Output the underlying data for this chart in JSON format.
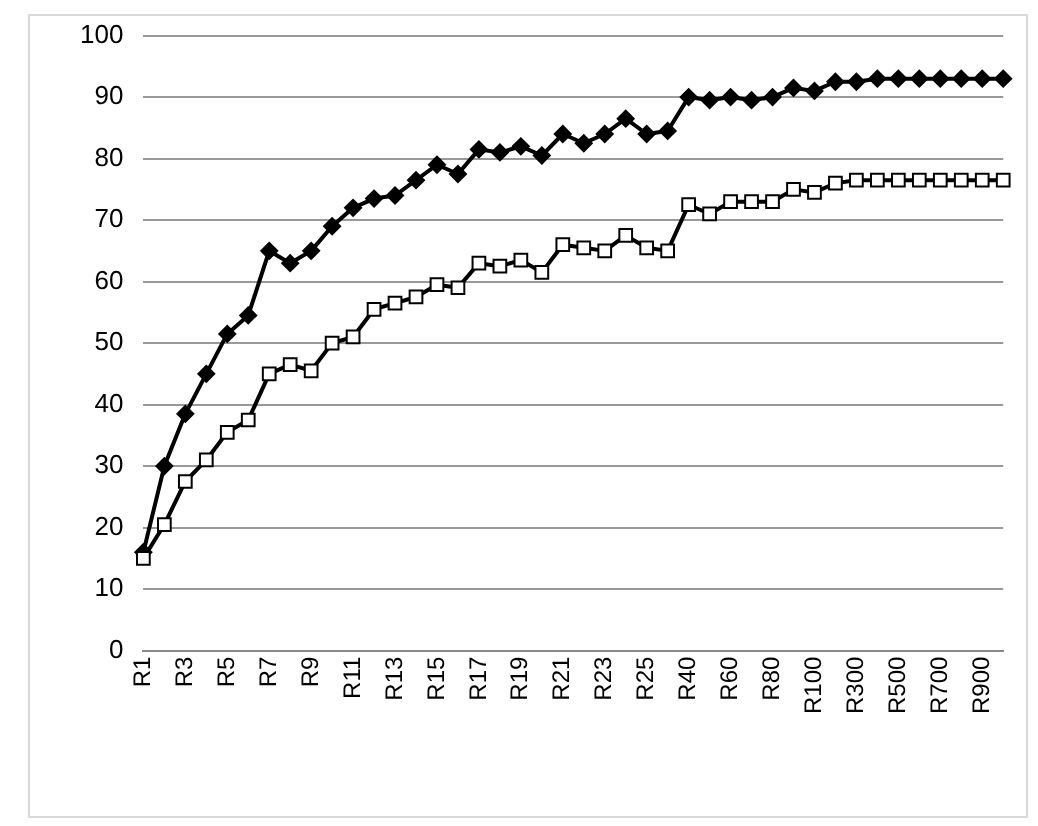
{
  "chart_data": {
    "type": "line",
    "categories": [
      "R1",
      null,
      "R3",
      null,
      "R5",
      null,
      "R7",
      null,
      "R9",
      null,
      "R11",
      null,
      "R13",
      null,
      "R15",
      null,
      "R17",
      null,
      "R19",
      null,
      "R21",
      null,
      "R23",
      null,
      "R25",
      null,
      "R40",
      null,
      "R60",
      null,
      "R80",
      null,
      "R100",
      null,
      "R300",
      null,
      "R500",
      null,
      "R700",
      null,
      "R900",
      null
    ],
    "series": [
      {
        "color": "#000000",
        "marker": "diamond",
        "values": [
          16,
          30,
          38.5,
          45,
          51.5,
          54.5,
          65,
          63,
          65,
          69,
          72,
          73.5,
          74,
          76.5,
          79,
          77.5,
          81.5,
          81,
          82,
          80.5,
          84,
          82.5,
          84,
          86.5,
          84,
          84.5,
          90,
          89.5,
          90,
          89.5,
          90,
          91.5,
          91,
          92.5,
          92.5,
          93,
          93,
          93,
          93,
          93,
          93,
          93
        ]
      },
      {
        "color": "#000000",
        "marker": "square",
        "values": [
          15,
          20.5,
          27.5,
          31,
          35.5,
          37.5,
          45,
          46.5,
          45.5,
          50,
          51,
          55.5,
          56.5,
          57.5,
          59.5,
          59,
          63,
          62.5,
          63.5,
          61.5,
          66,
          65.5,
          65,
          67.5,
          65.5,
          65,
          72.5,
          71,
          73,
          73,
          73,
          75,
          74.5,
          76,
          76.5,
          76.5,
          76.5,
          76.5,
          76.5,
          76.5,
          76.5,
          76.5
        ]
      }
    ],
    "ylim": [
      0,
      100
    ],
    "yticks": [
      0,
      10,
      20,
      30,
      40,
      50,
      60,
      70,
      80,
      90,
      100
    ],
    "grid": "y",
    "line_style": "solid"
  }
}
